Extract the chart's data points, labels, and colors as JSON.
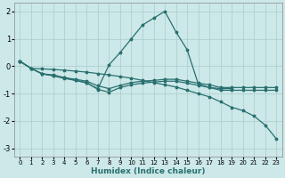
{
  "xlabel": "Humidex (Indice chaleur)",
  "xlim": [
    -0.5,
    23.5
  ],
  "ylim": [
    -3.3,
    2.3
  ],
  "yticks": [
    -3,
    -2,
    -1,
    0,
    1,
    2
  ],
  "xticks": [
    0,
    1,
    2,
    3,
    4,
    5,
    6,
    7,
    8,
    9,
    10,
    11,
    12,
    13,
    14,
    15,
    16,
    17,
    18,
    19,
    20,
    21,
    22,
    23
  ],
  "bg_color": "#cce8e8",
  "grid_color": "#aacccc",
  "line_color": "#2a7070",
  "lines": [
    {
      "x": [
        0,
        1,
        2,
        3,
        4,
        5,
        6,
        7,
        8,
        9,
        10,
        11,
        12,
        13,
        14,
        15,
        16,
        17,
        18,
        19
      ],
      "y": [
        0.18,
        -0.08,
        -0.28,
        -0.32,
        -0.42,
        -0.52,
        -0.62,
        -0.82,
        0.05,
        0.5,
        1.0,
        1.5,
        1.75,
        2.0,
        1.25,
        0.6,
        -0.65,
        -0.78,
        -0.82,
        -0.82
      ]
    },
    {
      "x": [
        0,
        1,
        2,
        3,
        4,
        5,
        6,
        7,
        8,
        9,
        10,
        11,
        12,
        13,
        14,
        15,
        16,
        17,
        18,
        19,
        20,
        21,
        22,
        23
      ],
      "y": [
        0.18,
        -0.08,
        -0.1,
        -0.12,
        -0.15,
        -0.18,
        -0.22,
        -0.27,
        -0.32,
        -0.38,
        -0.44,
        -0.52,
        -0.6,
        -0.68,
        -0.76,
        -0.88,
        -1.0,
        -1.12,
        -1.3,
        -1.5,
        -1.62,
        -1.82,
        -2.15,
        -2.65
      ]
    },
    {
      "x": [
        0,
        1,
        2,
        3,
        4,
        5,
        6,
        7,
        8,
        9,
        10,
        11,
        12,
        13,
        14,
        15,
        16,
        17,
        18,
        19,
        20,
        21,
        22,
        23
      ],
      "y": [
        0.18,
        -0.08,
        -0.28,
        -0.35,
        -0.45,
        -0.52,
        -0.6,
        -0.85,
        -0.95,
        -0.78,
        -0.68,
        -0.62,
        -0.58,
        -0.55,
        -0.55,
        -0.62,
        -0.7,
        -0.78,
        -0.88,
        -0.88,
        -0.88,
        -0.88,
        -0.88,
        -0.88
      ]
    },
    {
      "x": [
        0,
        1,
        2,
        3,
        4,
        5,
        6,
        7,
        8,
        9,
        10,
        11,
        12,
        13,
        14,
        15,
        16,
        17,
        18,
        19,
        20,
        21,
        22,
        23
      ],
      "y": [
        0.18,
        -0.08,
        -0.28,
        -0.35,
        -0.42,
        -0.48,
        -0.55,
        -0.72,
        -0.82,
        -0.7,
        -0.6,
        -0.55,
        -0.52,
        -0.48,
        -0.48,
        -0.55,
        -0.62,
        -0.68,
        -0.78,
        -0.78,
        -0.78,
        -0.78,
        -0.78,
        -0.78
      ]
    }
  ],
  "figsize": [
    3.2,
    2.0
  ],
  "dpi": 100
}
